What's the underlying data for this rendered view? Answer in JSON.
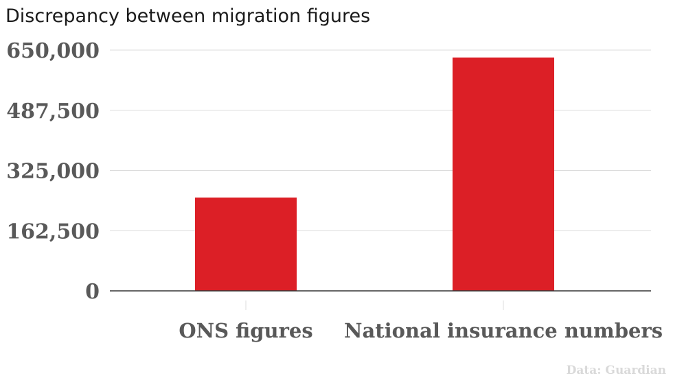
{
  "chart_data": {
    "type": "bar",
    "title": "Discrepancy between migration figures",
    "categories": [
      "ONS figures",
      "National insurance numbers"
    ],
    "values": [
      252000,
      630000
    ],
    "ylim": [
      0,
      650000
    ],
    "yticks": [
      "0",
      "162,500",
      "325,000",
      "487,500",
      "650,000"
    ],
    "ytick_values": [
      0,
      162500,
      325000,
      487500,
      650000
    ],
    "grid": true,
    "source": "Data: Guardian"
  },
  "colors": {
    "bar": "#dc1f26",
    "grid": "#dcdcdc",
    "axis": "#333333"
  }
}
